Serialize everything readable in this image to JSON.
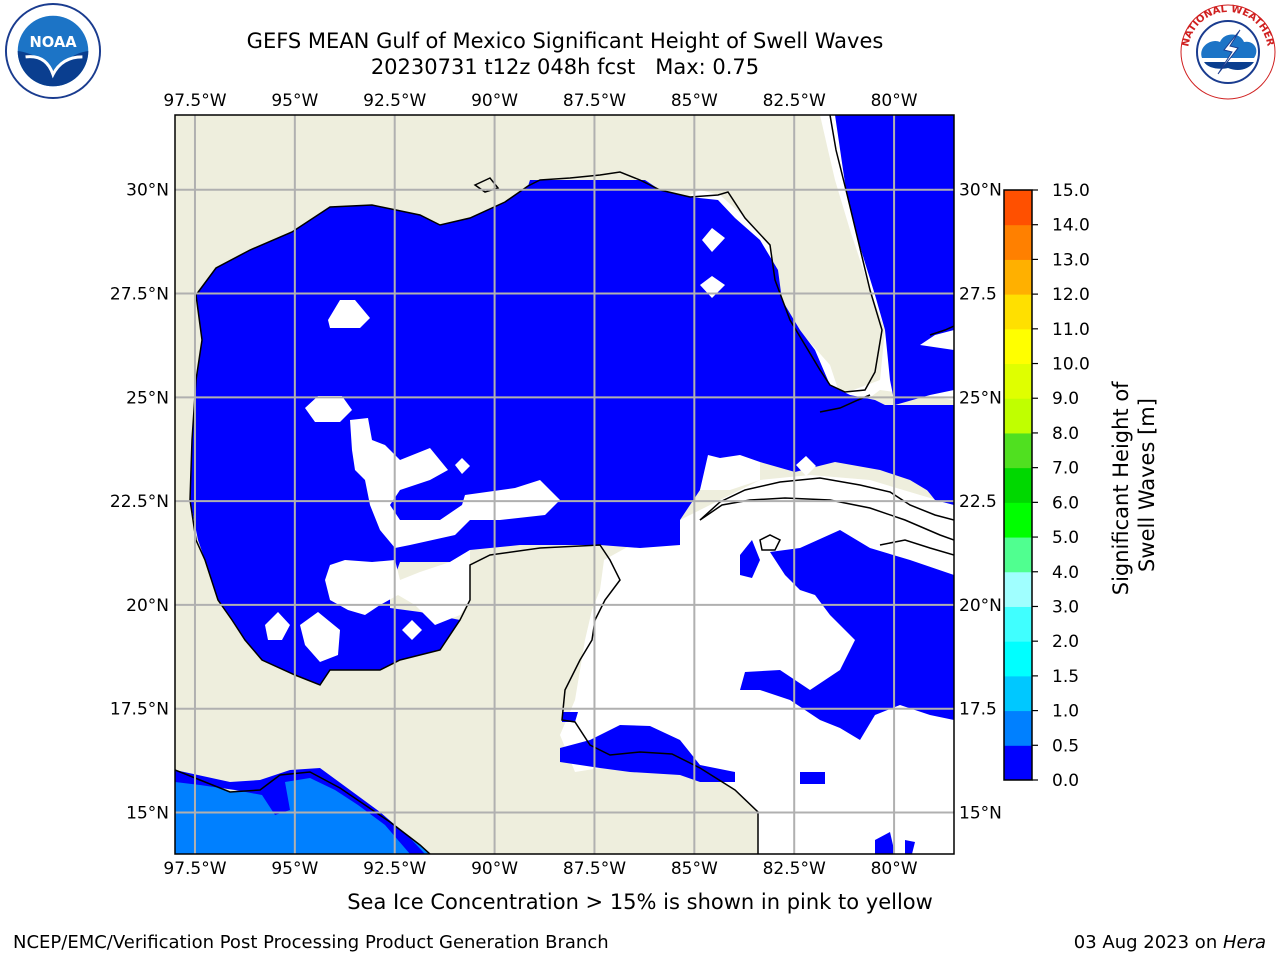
{
  "title": {
    "line1": "GEFS MEAN Gulf of Mexico Significant Height of Swell Waves",
    "line2": "20230731 t12z 048h fcst   Max: 0.75"
  },
  "logos": {
    "left": "noaa-logo",
    "left_text": "NOAA",
    "left_ring_text": "NATIONAL OCEANIC AND ATMOSPHERIC ADMINISTRATION · U.S. DEPARTMENT OF COMMERCE",
    "right": "nws-logo",
    "right_ring_text": "NATIONAL WEATHER SERVICE"
  },
  "map": {
    "longitude_labels": [
      "97.5°W",
      "95°W",
      "92.5°W",
      "90°W",
      "87.5°W",
      "85°W",
      "82.5°W",
      "80°W"
    ],
    "latitude_labels_left": [
      "30°N",
      "27.5°N",
      "25°N",
      "22.5°N",
      "20°N",
      "17.5°N",
      "15°N"
    ],
    "latitude_labels_right": [
      "30°N",
      "27.5",
      "25°N",
      "22.5",
      "20°N",
      "17.5",
      "15°N"
    ],
    "lon_range": [
      -98,
      -78.5
    ],
    "lat_range": [
      14,
      31.8
    ],
    "colors": {
      "land": "#eeeedd",
      "ocean_zero": "#0000ff",
      "swell_half": "#0080ff",
      "no_data": "#ffffff",
      "grid": "#b0b0b0",
      "coast": "#000000"
    }
  },
  "colorbar": {
    "label": "Significant Height of Swell Waves [m]",
    "tick_labels": [
      "0.0",
      "0.5",
      "1.0",
      "1.5",
      "2.0",
      "3.0",
      "4.0",
      "5.0",
      "6.0",
      "7.0",
      "8.0",
      "9.0",
      "10.0",
      "11.0",
      "12.0",
      "13.0",
      "14.0",
      "15.0"
    ],
    "colors": [
      "#0000ff",
      "#0080ff",
      "#00c8ff",
      "#00ffff",
      "#40ffff",
      "#a0ffff",
      "#50ff90",
      "#00ff00",
      "#00d800",
      "#50e020",
      "#c0ff00",
      "#dfff00",
      "#ffff00",
      "#ffe000",
      "#ffb000",
      "#ff8000",
      "#ff5000",
      "#ff2000",
      "#ff0000"
    ]
  },
  "notes": {
    "sea_ice": "Sea Ice Concentration > 15% is shown in pink to yellow"
  },
  "footer": {
    "left": "NCEP/EMC/Verification Post Processing Product Generation Branch",
    "right_date": "03 Aug 2023 on ",
    "right_machine": "Hera"
  }
}
